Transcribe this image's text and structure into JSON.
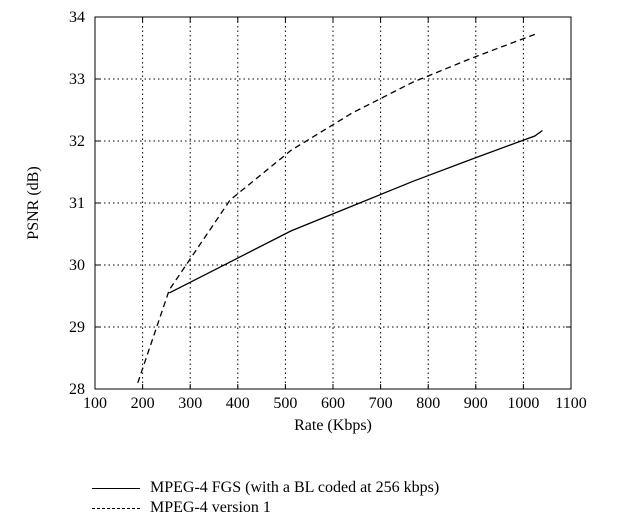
{
  "chart_data": {
    "type": "line",
    "xlabel": "Rate (Kbps)",
    "ylabel": "PSNR (dB)",
    "xlim": [
      100,
      1100
    ],
    "ylim": [
      28,
      34
    ],
    "xticks": [
      "100",
      "200",
      "300",
      "400",
      "500",
      "600",
      "700",
      "800",
      "900",
      "1000",
      "1100"
    ],
    "yticks": [
      "28",
      "29",
      "30",
      "31",
      "32",
      "33",
      "34"
    ],
    "grid": true,
    "legend_position": "below",
    "series": [
      {
        "name": "MPEG-4 FGS (with a BL coded at 256 kbps)",
        "style": "solid",
        "color": "#000000",
        "x": [
          256,
          384,
          512,
          640,
          768,
          896,
          1024,
          1040
        ],
        "y": [
          29.55,
          30.05,
          30.55,
          30.95,
          31.35,
          31.72,
          32.08,
          32.17
        ]
      },
      {
        "name": "MPEG-4 version 1",
        "style": "dashed",
        "color": "#000000",
        "x": [
          190,
          256,
          384,
          512,
          640,
          768,
          896,
          1024
        ],
        "y": [
          28.1,
          29.6,
          31.05,
          31.85,
          32.45,
          32.95,
          33.35,
          33.72
        ]
      }
    ]
  }
}
